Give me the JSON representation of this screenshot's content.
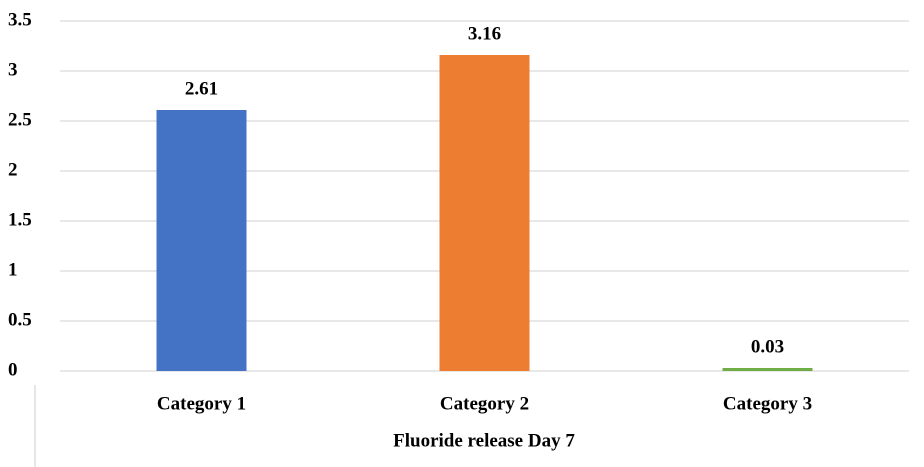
{
  "chart_data": {
    "type": "bar",
    "x_label": "Fluoride release Day 7",
    "categories": [
      "Category 1",
      "Category 2",
      "Category 3"
    ],
    "values": [
      2.61,
      3.16,
      0.03
    ],
    "colors": [
      "#4472c4",
      "#ed7d31",
      "#70ad47"
    ],
    "ylim": [
      0,
      3.5
    ],
    "yticks": [
      0,
      0.5,
      1,
      1.5,
      2,
      2.5,
      3,
      3.5
    ],
    "grid": true
  }
}
